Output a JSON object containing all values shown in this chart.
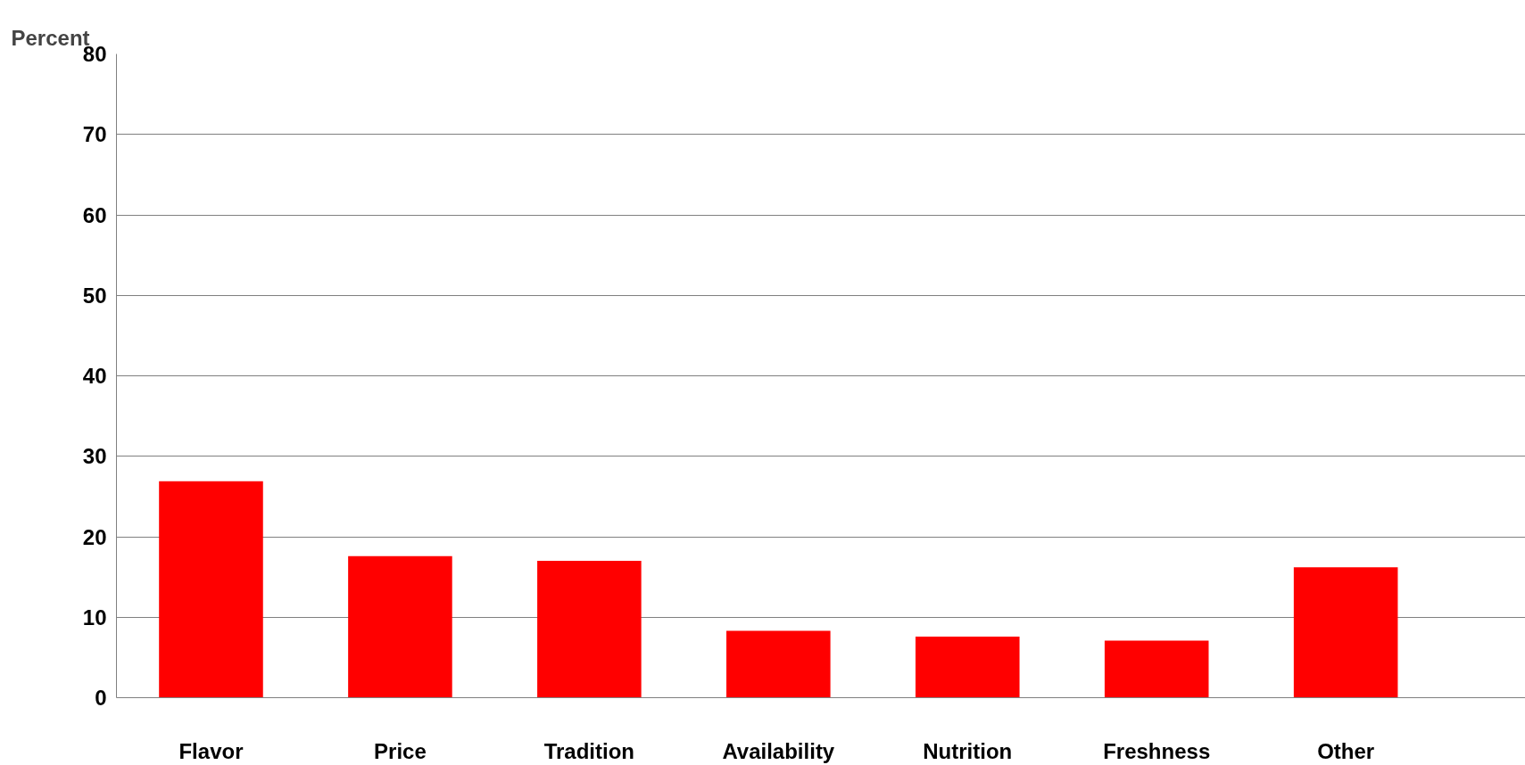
{
  "chart_data": {
    "type": "bar",
    "ylabel": "Percent",
    "categories": [
      "Flavor",
      "Price",
      "Tradition",
      "Availability",
      "Nutrition",
      "Freshness",
      "Other"
    ],
    "series": [
      {
        "color": "#ff0000",
        "values": [
          26.9,
          17.6,
          17.0,
          8.3,
          7.6,
          7.1,
          16.2
        ]
      }
    ],
    "ylim": [
      0,
      80
    ],
    "yticks": [
      0,
      10,
      20,
      30,
      40,
      50,
      60,
      70,
      80
    ],
    "grid": "y"
  }
}
